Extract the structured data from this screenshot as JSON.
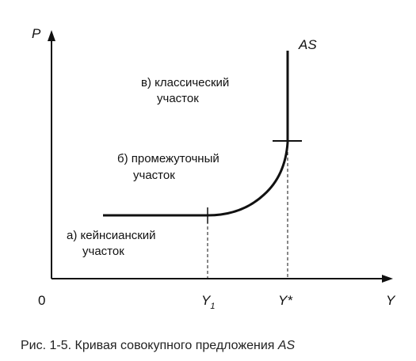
{
  "axes": {
    "y_label": "P",
    "x_label": "Y",
    "origin_label": "0",
    "tick_y1": "Y",
    "tick_y1_sub": "1",
    "tick_ystar": "Y*"
  },
  "curve_label": "AS",
  "regions": {
    "keynesian": [
      "а) кейнсианский",
      "участок"
    ],
    "intermediate": [
      "б) промежуточный",
      "участок"
    ],
    "classical": [
      "в) классический",
      "участок"
    ]
  },
  "caption": {
    "prefix": "Рис. 1-5.  Кривая совокупного предложения ",
    "italic": "AS"
  }
}
